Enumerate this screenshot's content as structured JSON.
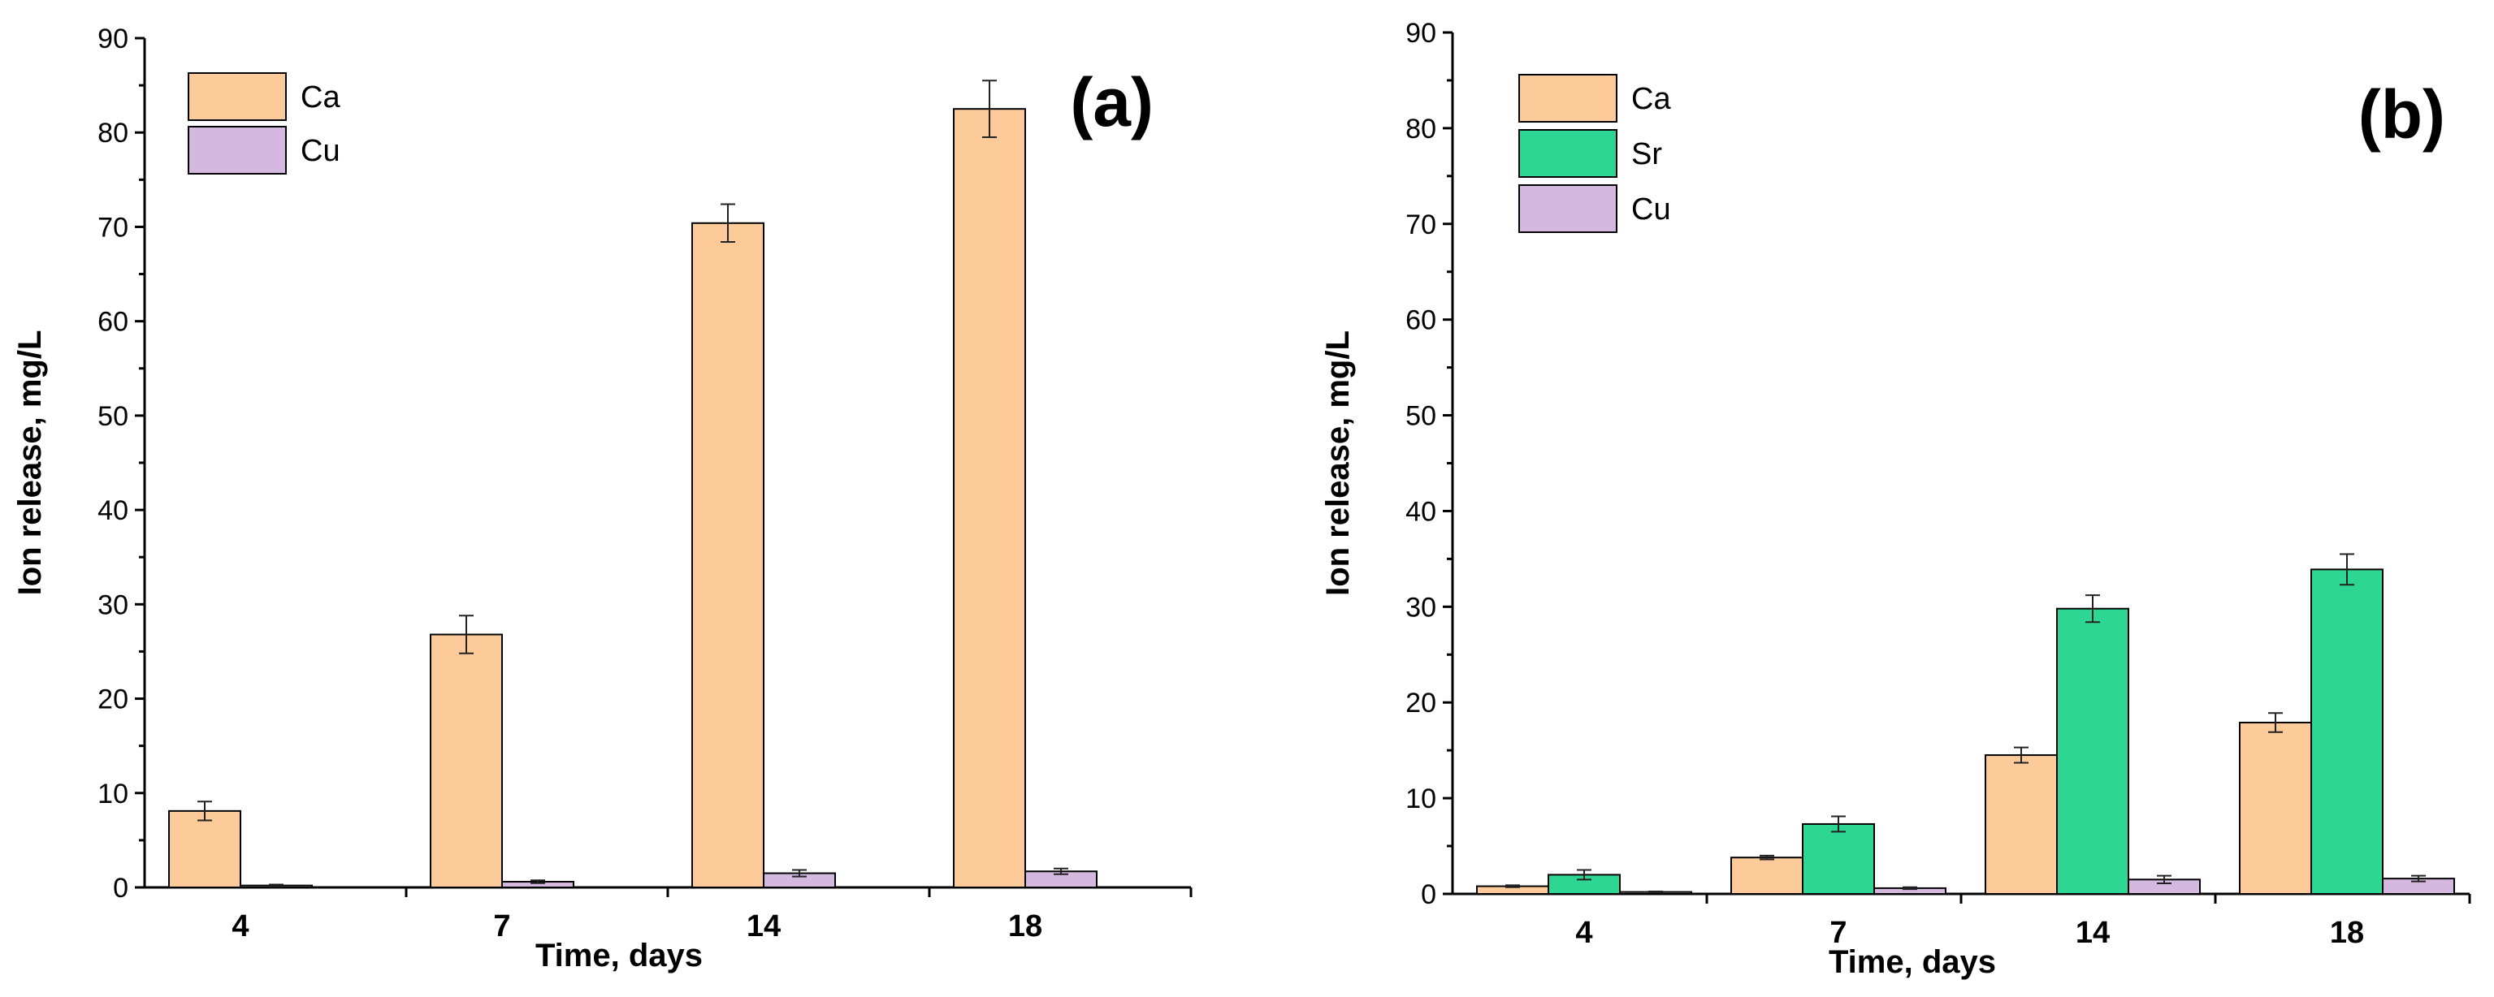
{
  "chart_data": [
    {
      "id": "a",
      "type": "bar",
      "panel_label": "(a)",
      "xlabel": "Time, days",
      "ylabel": "Ion release, mg/L",
      "ylim": [
        0,
        90
      ],
      "yticks": [
        0,
        10,
        20,
        30,
        40,
        50,
        60,
        70,
        80,
        90
      ],
      "categories": [
        "4",
        "7",
        "14",
        "18"
      ],
      "legend_position": "top-left",
      "series": [
        {
          "name": "Ca",
          "color": "#FDCB9A",
          "values": [
            8.1,
            26.8,
            70.4,
            82.5
          ],
          "errors": [
            1.0,
            2.0,
            2.0,
            3.0
          ]
        },
        {
          "name": "Cu",
          "color": "#D4B8E0",
          "values": [
            0.2,
            0.6,
            1.5,
            1.7
          ],
          "errors": [
            0.1,
            0.15,
            0.35,
            0.3
          ]
        }
      ]
    },
    {
      "id": "b",
      "type": "bar",
      "panel_label": "(b)",
      "xlabel": "Time, days",
      "ylabel": "Ion release, mg/L",
      "ylim": [
        0,
        90
      ],
      "yticks": [
        0,
        10,
        20,
        30,
        40,
        50,
        60,
        70,
        80,
        90
      ],
      "categories": [
        "4",
        "7",
        "14",
        "18"
      ],
      "legend_position": "top-left",
      "series": [
        {
          "name": "Ca",
          "color": "#FDCB9A",
          "values": [
            0.8,
            3.8,
            14.5,
            17.9
          ],
          "errors": [
            0.1,
            0.2,
            0.8,
            1.0
          ]
        },
        {
          "name": "Sr",
          "color": "#2ED693",
          "values": [
            2.0,
            7.3,
            29.8,
            33.9
          ],
          "errors": [
            0.5,
            0.8,
            1.4,
            1.6
          ]
        },
        {
          "name": "Cu",
          "color": "#D4B8E0",
          "values": [
            0.2,
            0.6,
            1.5,
            1.6
          ],
          "errors": [
            0.05,
            0.1,
            0.4,
            0.3
          ]
        }
      ]
    }
  ]
}
